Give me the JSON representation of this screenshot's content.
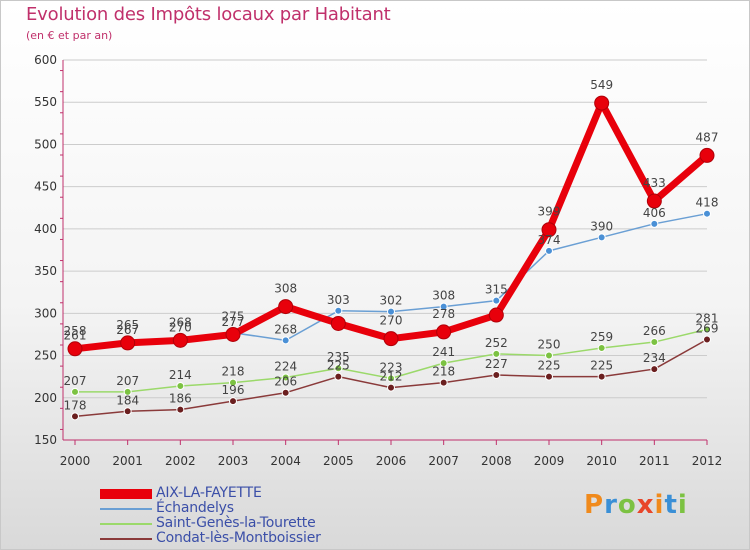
{
  "header": {
    "title": "Evolution des Impôts locaux par Habitant",
    "subtitle": "(en € et par an)"
  },
  "colors": {
    "title": "#c0306b",
    "axis": "#c0306b",
    "legend_text": "#3b4fa8",
    "grid": "#cccccc"
  },
  "logo": {
    "text": "Proxiti",
    "letters": [
      "P",
      "r",
      "o",
      "x",
      "i",
      "t",
      "i"
    ],
    "letter_colors": [
      "#f08a1c",
      "#3a8fd6",
      "#7cc242",
      "#e8462a",
      "#f08a1c",
      "#3a8fd6",
      "#7cc242"
    ]
  },
  "chart_data": {
    "type": "line",
    "x": [
      "2000",
      "2001",
      "2002",
      "2003",
      "2004",
      "2005",
      "2006",
      "2007",
      "2008",
      "2009",
      "2010",
      "2011",
      "2012"
    ],
    "ylim": [
      150,
      600
    ],
    "yticks": [
      150,
      200,
      250,
      300,
      350,
      400,
      450,
      500,
      550,
      600
    ],
    "grid": true,
    "legend_position": "bottom-left",
    "series": [
      {
        "name": "AIX-LA-FAYETTE",
        "color": "#e8000b",
        "dot_fill": "#e8000b",
        "line_width": 7,
        "marker_radius": 6,
        "label_offset": -18,
        "values": [
          258,
          265,
          268,
          275,
          308,
          288,
          270,
          278,
          298,
          399,
          549,
          433,
          487
        ],
        "labels": [
          "258",
          "265",
          "268",
          "275",
          "308",
          "",
          "270",
          "278",
          "",
          "399",
          "549",
          "433",
          "487"
        ]
      },
      {
        "name": "Échandelys",
        "color": "#6a9fd4",
        "dot_fill": "#4a90d6",
        "line_width": 1.5,
        "marker_radius": 3.5,
        "label_offset": -11,
        "values": [
          261,
          267,
          270,
          277,
          268,
          303,
          302,
          308,
          315,
          374,
          390,
          406,
          418
        ],
        "labels": [
          "261",
          "267",
          "270",
          "277",
          "268",
          "303",
          "302",
          "308",
          "315",
          "374",
          "390",
          "406",
          "418"
        ]
      },
      {
        "name": "Saint-Genès-la-Tourette",
        "color": "#9bd96a",
        "dot_fill": "#7cc242",
        "line_width": 1.5,
        "marker_radius": 3.5,
        "label_offset": -11,
        "values": [
          207,
          207,
          214,
          218,
          224,
          235,
          223,
          241,
          252,
          250,
          259,
          266,
          281
        ],
        "labels": [
          "207",
          "207",
          "214",
          "218",
          "224",
          "235",
          "223",
          "241",
          "252",
          "250",
          "259",
          "266",
          "281"
        ]
      },
      {
        "name": "Condat-lès-Montboissier",
        "color": "#8a3a3a",
        "dot_fill": "#6b1f1f",
        "line_width": 1.5,
        "marker_radius": 3.5,
        "label_offset": -11,
        "values": [
          178,
          184,
          186,
          196,
          206,
          225,
          212,
          218,
          227,
          225,
          225,
          234,
          269
        ],
        "labels": [
          "178",
          "184",
          "186",
          "196",
          "206",
          "225",
          "212",
          "218",
          "227",
          "225",
          "225",
          "234",
          "269"
        ]
      }
    ]
  }
}
